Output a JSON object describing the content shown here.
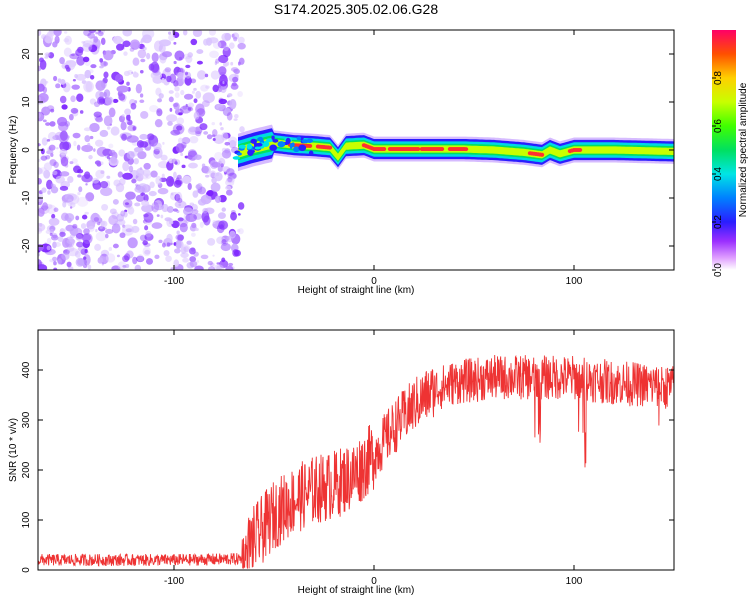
{
  "title": "S174.2025.305.02.06.G28",
  "chart_data": [
    {
      "type": "heatmap",
      "xlabel": "Height of straight line (km)",
      "ylabel": "Frequency (Hz)",
      "xlim": [
        -168,
        150
      ],
      "ylim": [
        -25,
        25
      ],
      "x_ticks": [
        -100,
        0,
        100
      ],
      "x_tick_labels": [
        "-100",
        "0",
        "100"
      ],
      "y_ticks": [
        -20,
        -10,
        0,
        10,
        20
      ],
      "y_tick_labels": [
        "-20",
        "-10",
        "0",
        "10",
        "20"
      ],
      "noise_region_x": [
        -168,
        -66
      ],
      "signal_region_x": [
        -70,
        150
      ],
      "signal_ridge": [
        {
          "x": -68,
          "f": -0.5
        },
        {
          "x": -60,
          "f": 0.5
        },
        {
          "x": -50,
          "f": 1.5
        },
        {
          "x": -40,
          "f": 1.0
        },
        {
          "x": -30,
          "f": 0.8
        },
        {
          "x": -22,
          "f": 0.5
        },
        {
          "x": -18,
          "f": -1.5
        },
        {
          "x": -14,
          "f": 0.8
        },
        {
          "x": -5,
          "f": 1.0
        },
        {
          "x": 0,
          "f": 0.2
        },
        {
          "x": 20,
          "f": 0.2
        },
        {
          "x": 45,
          "f": 0.2
        },
        {
          "x": 60,
          "f": 0.0
        },
        {
          "x": 75,
          "f": -0.5
        },
        {
          "x": 84,
          "f": -1.0
        },
        {
          "x": 88,
          "f": 0.0
        },
        {
          "x": 93,
          "f": -0.8
        },
        {
          "x": 100,
          "f": 0.0
        },
        {
          "x": 120,
          "f": 0.0
        },
        {
          "x": 150,
          "f": -0.3
        }
      ],
      "colorbar": {
        "label": "Normalized spectral amplitude",
        "range": [
          0,
          1
        ],
        "ticks": [
          0.0,
          0.2,
          0.4,
          0.6,
          0.8
        ],
        "tick_labels": [
          "0.0",
          "0.2",
          "0.4",
          "0.6",
          "0.8"
        ]
      }
    },
    {
      "type": "line",
      "xlabel": "Height of straight line (km)",
      "ylabel": "SNR (10 * v/v)",
      "xlim": [
        -168,
        150
      ],
      "ylim": [
        0,
        480
      ],
      "x_ticks": [
        -100,
        0,
        100
      ],
      "x_tick_labels": [
        "-100",
        "0",
        "100"
      ],
      "y_ticks": [
        0,
        100,
        200,
        300,
        400
      ],
      "y_tick_labels": [
        "0",
        "100",
        "200",
        "300",
        "400"
      ],
      "series": [
        {
          "name": "SNR",
          "color": "#ee3333",
          "envelope": [
            {
              "x": -168,
              "y": 20
            },
            {
              "x": -100,
              "y": 20
            },
            {
              "x": -66,
              "y": 22
            },
            {
              "x": -60,
              "y": 60
            },
            {
              "x": -50,
              "y": 110
            },
            {
              "x": -40,
              "y": 140
            },
            {
              "x": -30,
              "y": 160
            },
            {
              "x": -20,
              "y": 170
            },
            {
              "x": -10,
              "y": 190
            },
            {
              "x": 0,
              "y": 230
            },
            {
              "x": 10,
              "y": 285
            },
            {
              "x": 20,
              "y": 330
            },
            {
              "x": 30,
              "y": 360
            },
            {
              "x": 40,
              "y": 375
            },
            {
              "x": 60,
              "y": 385
            },
            {
              "x": 80,
              "y": 385
            },
            {
              "x": 100,
              "y": 385
            },
            {
              "x": 120,
              "y": 375
            },
            {
              "x": 150,
              "y": 365
            }
          ]
        }
      ]
    }
  ]
}
